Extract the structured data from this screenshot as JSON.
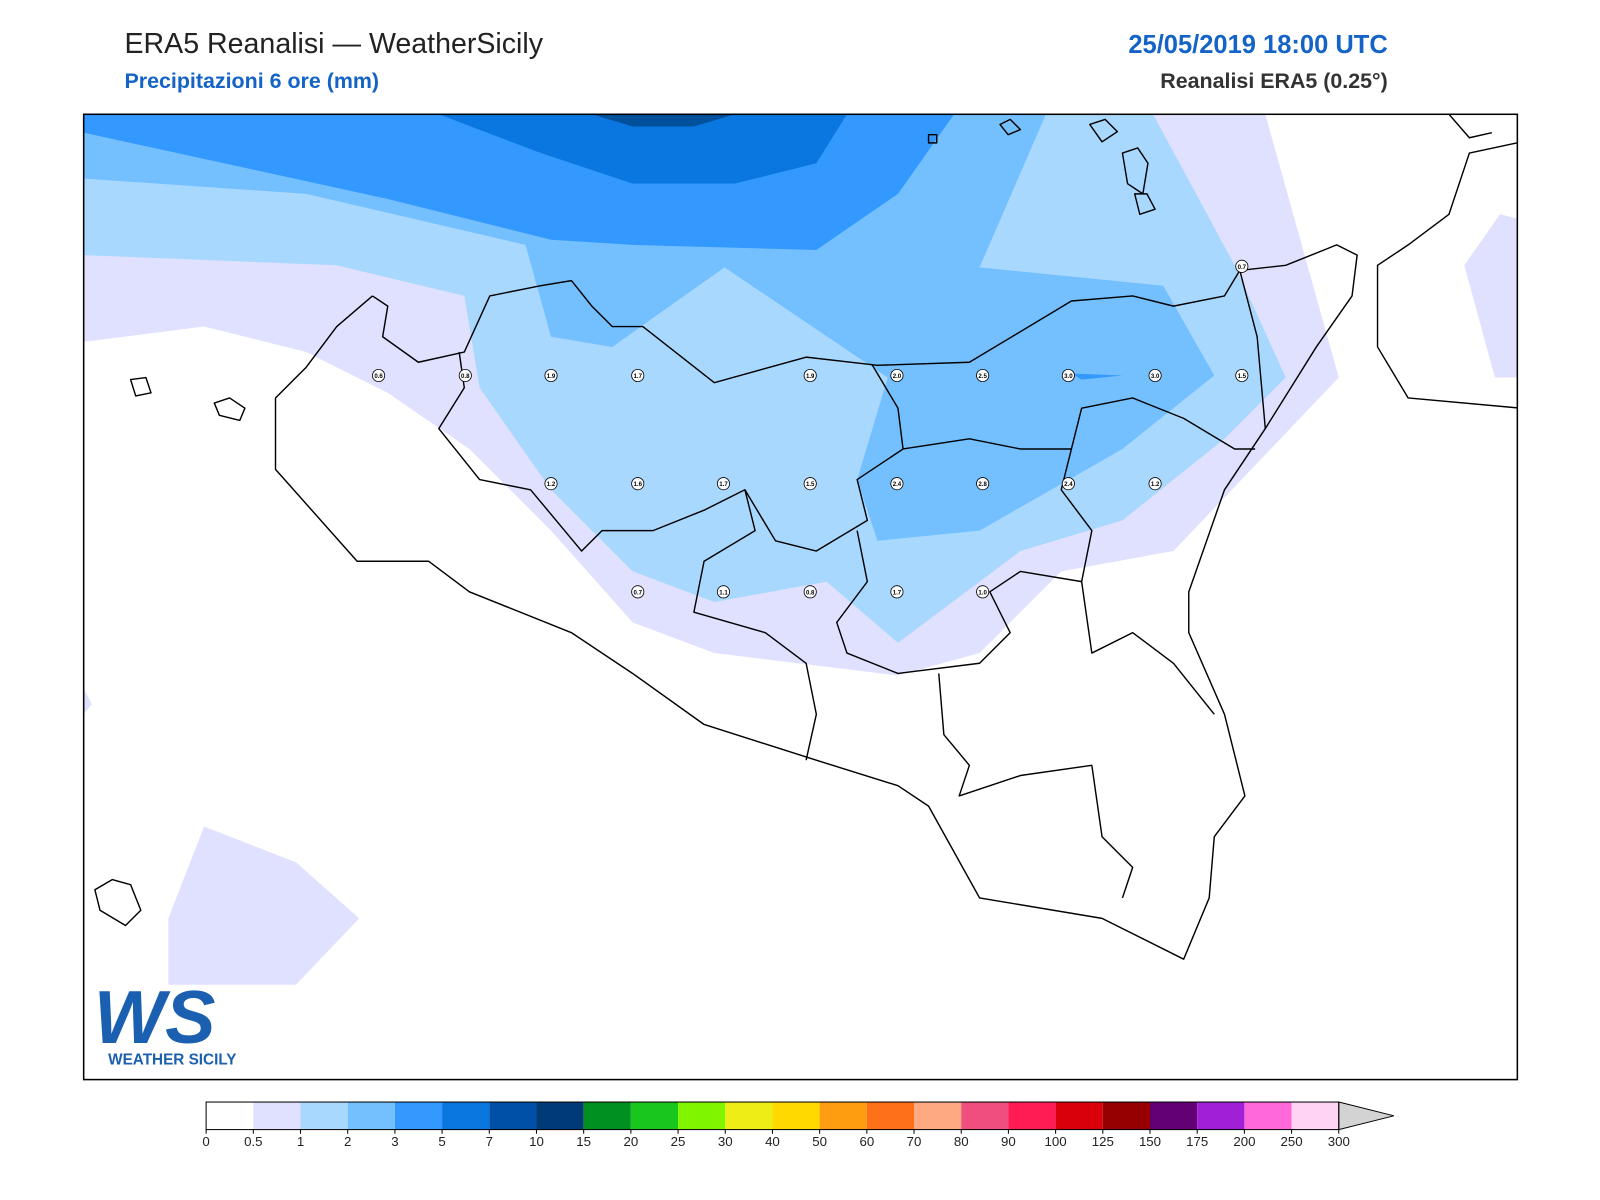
{
  "header": {
    "title": "ERA5 Reanalisi — WeatherSicily",
    "subtitle": "Precipitazioni 6 ore (mm)",
    "date": "25/05/2019 18:00 UTC",
    "source": "Reanalisi ERA5 (0.25°)"
  },
  "stations": [
    "0.7",
    "0.6",
    "0.8",
    "1.9",
    "1.7",
    "1.9",
    "2.0",
    "2.5",
    "3.0",
    "3.0",
    "1.5",
    "1.2",
    "1.6",
    "1.7",
    "1.5",
    "2.4",
    "2.8",
    "2.4",
    "1.2",
    "0.7",
    "1.1",
    "0.8",
    "1.7",
    "1.0"
  ],
  "logo": {
    "mark": "WS",
    "caption": "WEATHER SICILY"
  },
  "colorbar": {
    "ticks": [
      0,
      0.5,
      1,
      2,
      3,
      5,
      7,
      10,
      15,
      20,
      25,
      30,
      40,
      50,
      60,
      70,
      80,
      90,
      100,
      125,
      150,
      175,
      200,
      250,
      300
    ],
    "colors": [
      "#ffffff",
      "#e0e1fe",
      "#a9d8ff",
      "#74c0ff",
      "#3399ff",
      "#0a77e0",
      "#0050a8",
      "#003b77",
      "#009022",
      "#19c61e",
      "#7ff500",
      "#eeee16",
      "#ffd900",
      "#ff9d11",
      "#ff7119",
      "#ffa983",
      "#ef4e7e",
      "#ff1c55",
      "#d9000c",
      "#960000",
      "#630075",
      "#a020d8",
      "#ff68d9",
      "#ffd3f3"
    ],
    "extend_color": "#d3d3d3"
  }
}
